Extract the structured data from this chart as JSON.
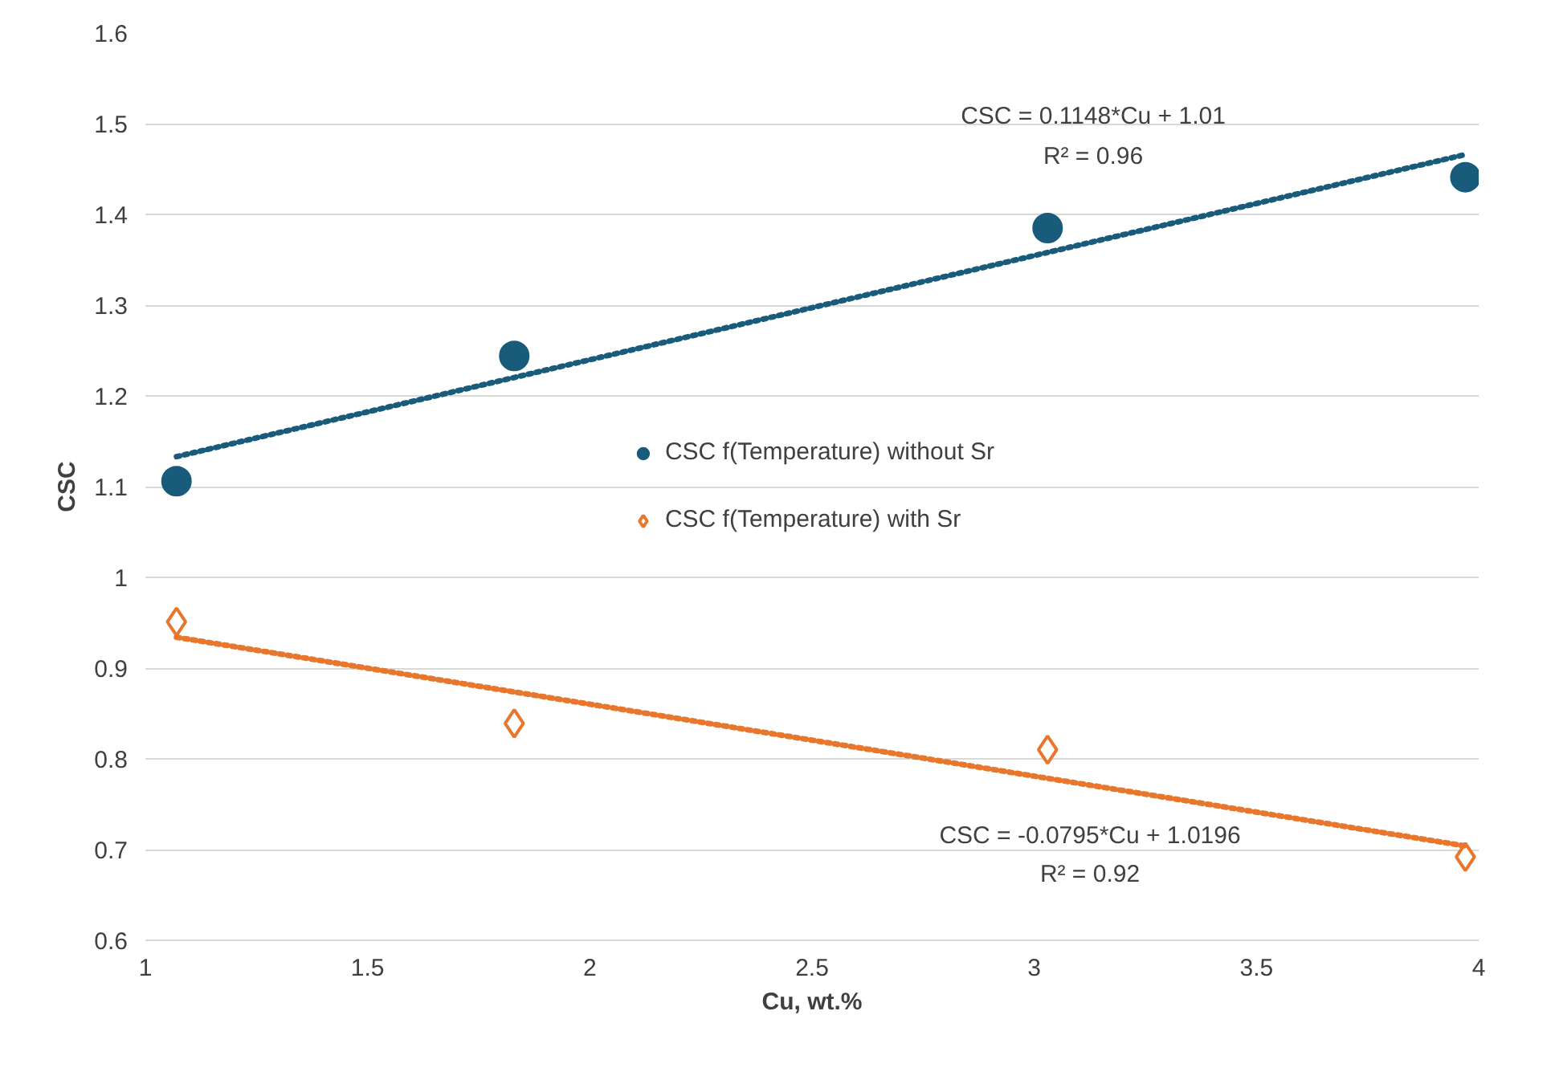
{
  "chart_data": {
    "type": "scatter",
    "xlabel": "Cu, wt.%",
    "ylabel": "CSC",
    "xlim": [
      1,
      4
    ],
    "ylim": [
      0.6,
      1.6
    ],
    "xticks": [
      1,
      1.5,
      2,
      2.5,
      3,
      3.5,
      4
    ],
    "yticks": [
      0.6,
      0.7,
      0.8,
      0.9,
      1,
      1.1,
      1.2,
      1.3,
      1.4,
      1.5,
      1.6
    ],
    "grid": "y",
    "legend": "center",
    "series": [
      {
        "name": "CSC f(Temperature) without Sr",
        "marker": "circle",
        "color": "#195b7a",
        "x": [
          1.07,
          1.83,
          3.03,
          3.97
        ],
        "values": [
          1.106,
          1.244,
          1.385,
          1.441
        ]
      },
      {
        "name": "CSC f(Temperature) with Sr",
        "marker": "diamond",
        "color": "#e8772e",
        "x": [
          1.07,
          1.83,
          3.03,
          3.97
        ],
        "values": [
          0.951,
          0.839,
          0.81,
          0.692
        ]
      },
      {
        "type": "line",
        "line_style": "dotted",
        "color": "#195b7a",
        "x": [
          1.07,
          3.97
        ],
        "values": [
          1.133,
          1.466
        ]
      },
      {
        "type": "line",
        "line_style": "dotted",
        "color": "#e8772e",
        "x": [
          1.07,
          3.97
        ],
        "values": [
          0.934,
          0.704
        ]
      }
    ],
    "annotations": [
      "CSC = 0.1148*Cu + 1.01",
      "R² = 0.96",
      "CSC = -0.0795*Cu + 1.0196",
      "R² = 0.92"
    ]
  }
}
